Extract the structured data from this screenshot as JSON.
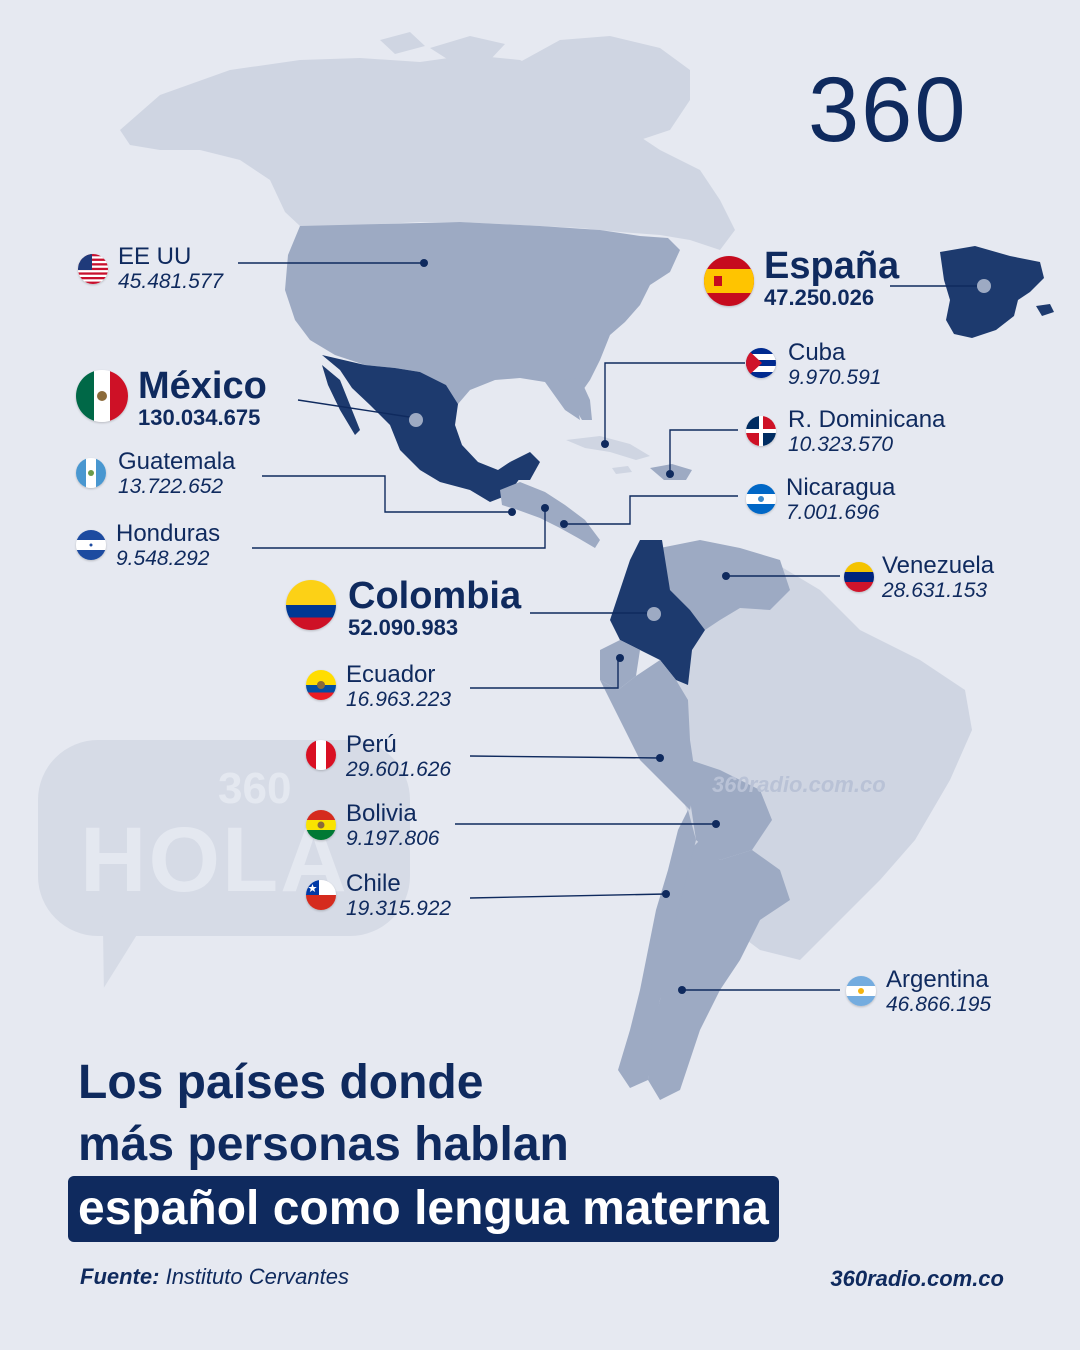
{
  "brand": {
    "logo": "360",
    "website": "360radio.com.co",
    "watermark": "360radio.com.co"
  },
  "background_bubble": {
    "small": "360",
    "big": "HOLA"
  },
  "title": {
    "line1": "Los países donde",
    "line2": "más personas hablan",
    "line3": "español como lengua materna"
  },
  "source": {
    "label": "Fuente:",
    "text": "Instituto Cervantes"
  },
  "colors": {
    "navy": "#0f2a5e",
    "land_light": "#cfd5e2",
    "land_mid": "#9daac3",
    "land_dark": "#1d3a6e",
    "background": "#e6e9f1"
  },
  "countries": [
    {
      "id": "eeuu",
      "name": "EE UU",
      "value": "45.481.577",
      "flag": "us-flag-icon",
      "highlight": false
    },
    {
      "id": "espana",
      "name": "España",
      "value": "47.250.026",
      "flag": "spain-flag-icon",
      "highlight": true
    },
    {
      "id": "mexico",
      "name": "México",
      "value": "130.034.675",
      "flag": "mexico-flag-icon",
      "highlight": true
    },
    {
      "id": "cuba",
      "name": "Cuba",
      "value": "9.970.591",
      "flag": "cuba-flag-icon",
      "highlight": false
    },
    {
      "id": "rdominicana",
      "name": "R. Dominicana",
      "value": "10.323.570",
      "flag": "dominican-republic-flag-icon",
      "highlight": false
    },
    {
      "id": "guatemala",
      "name": "Guatemala",
      "value": "13.722.652",
      "flag": "guatemala-flag-icon",
      "highlight": false
    },
    {
      "id": "nicaragua",
      "name": "Nicaragua",
      "value": "7.001.696",
      "flag": "nicaragua-flag-icon",
      "highlight": false
    },
    {
      "id": "honduras",
      "name": "Honduras",
      "value": "9.548.292",
      "flag": "honduras-flag-icon",
      "highlight": false
    },
    {
      "id": "venezuela",
      "name": "Venezuela",
      "value": "28.631.153",
      "flag": "venezuela-flag-icon",
      "highlight": false
    },
    {
      "id": "colombia",
      "name": "Colombia",
      "value": "52.090.983",
      "flag": "colombia-flag-icon",
      "highlight": true
    },
    {
      "id": "ecuador",
      "name": "Ecuador",
      "value": "16.963.223",
      "flag": "ecuador-flag-icon",
      "highlight": false
    },
    {
      "id": "peru",
      "name": "Perú",
      "value": "29.601.626",
      "flag": "peru-flag-icon",
      "highlight": false
    },
    {
      "id": "bolivia",
      "name": "Bolivia",
      "value": "9.197.806",
      "flag": "bolivia-flag-icon",
      "highlight": false
    },
    {
      "id": "chile",
      "name": "Chile",
      "value": "19.315.922",
      "flag": "chile-flag-icon",
      "highlight": false
    },
    {
      "id": "argentina",
      "name": "Argentina",
      "value": "46.866.195",
      "flag": "argentina-flag-icon",
      "highlight": false
    }
  ]
}
